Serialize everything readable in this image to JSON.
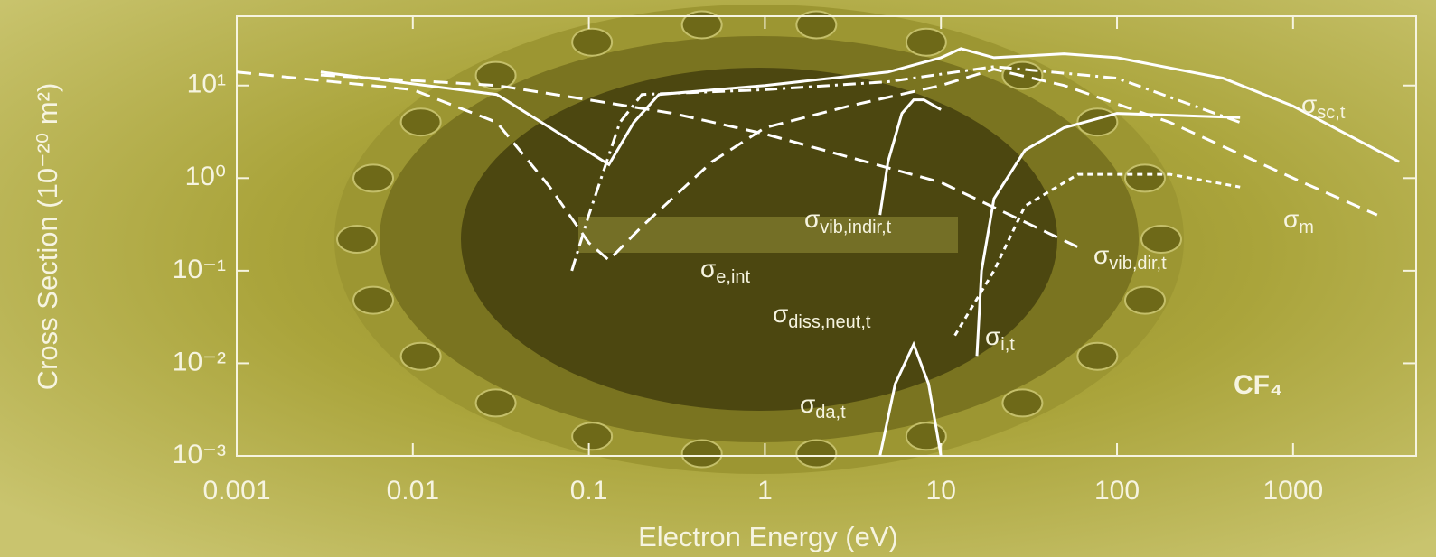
{
  "chart_data": {
    "type": "line",
    "xscale": "log",
    "yscale": "log",
    "xlabel": "Electron Energy (eV)",
    "ylabel": "Cross Section (10⁻²⁰ m²)",
    "annotation": "CF₄",
    "xlim": [
      0.001,
      5000
    ],
    "ylim": [
      0.001,
      56
    ],
    "xticks": [
      0.001,
      0.01,
      0.1,
      1,
      10,
      100,
      1000
    ],
    "yticks": [
      {
        "value": 0.001,
        "label": "10⁻³"
      },
      {
        "value": 0.01,
        "label": "10⁻²"
      },
      {
        "value": 0.1,
        "label": "10⁻¹"
      },
      {
        "value": 1,
        "label": "10⁰"
      },
      {
        "value": 10,
        "label": "10¹"
      }
    ],
    "series": [
      {
        "name": "σsc,t",
        "color": "#ffffff",
        "dash": "solid",
        "x": [
          0.003,
          0.03,
          0.08,
          0.13,
          0.18,
          0.25,
          1,
          5,
          10,
          13,
          20,
          50,
          100,
          400,
          1000,
          4000
        ],
        "values": [
          14,
          8,
          2.5,
          1.4,
          4,
          8,
          10,
          14,
          20,
          25,
          20,
          22,
          20,
          12,
          6,
          1.5
        ]
      },
      {
        "name": "σm",
        "color": "#ffffff",
        "dash": "dashed",
        "x": [
          0.001,
          0.01,
          0.03,
          0.06,
          0.1,
          0.13,
          0.2,
          0.5,
          1,
          3,
          10,
          20,
          50,
          200,
          1000,
          3000
        ],
        "values": [
          14,
          9,
          4,
          0.8,
          0.2,
          0.13,
          0.3,
          1.5,
          3.5,
          6,
          10,
          15,
          10,
          4,
          1,
          0.4
        ]
      },
      {
        "name": "σvib,dir,t",
        "color": "#ffffff",
        "dash": "dashed",
        "x": [
          0.003,
          0.03,
          0.1,
          0.3,
          1,
          10,
          60
        ],
        "values": [
          13,
          10,
          7,
          5,
          3,
          0.9,
          0.18
        ]
      },
      {
        "name": "σe,int",
        "color": "#ffffff",
        "dash": "dashdot",
        "x": [
          0.08,
          0.1,
          0.15,
          0.2,
          1,
          5,
          20,
          100,
          500
        ],
        "values": [
          0.1,
          0.4,
          4,
          8,
          9,
          11,
          16,
          12,
          4
        ]
      },
      {
        "name": "σvib,indir,t",
        "color": "#ffffff",
        "dash": "solid",
        "x": [
          4.5,
          5,
          6,
          7,
          8,
          10
        ],
        "values": [
          0.4,
          1.5,
          5,
          7,
          7,
          5.5
        ]
      },
      {
        "name": "σi,t",
        "color": "#ffffff",
        "dash": "solid",
        "x": [
          16,
          17,
          20,
          30,
          50,
          100,
          500
        ],
        "values": [
          0.012,
          0.1,
          0.6,
          2,
          3.5,
          5,
          4.5
        ]
      },
      {
        "name": "σdiss,neut,t",
        "color": "#ffffff",
        "dash": "shortdash",
        "x": [
          12,
          20,
          30,
          60,
          200,
          500
        ],
        "values": [
          0.02,
          0.1,
          0.5,
          1.1,
          1.1,
          0.8
        ]
      },
      {
        "name": "σda,t",
        "color": "#ffffff",
        "dash": "solid",
        "x": [
          4.5,
          5.5,
          7,
          8.5,
          10
        ],
        "values": [
          0.001,
          0.006,
          0.016,
          0.006,
          0.001
        ]
      }
    ]
  }
}
